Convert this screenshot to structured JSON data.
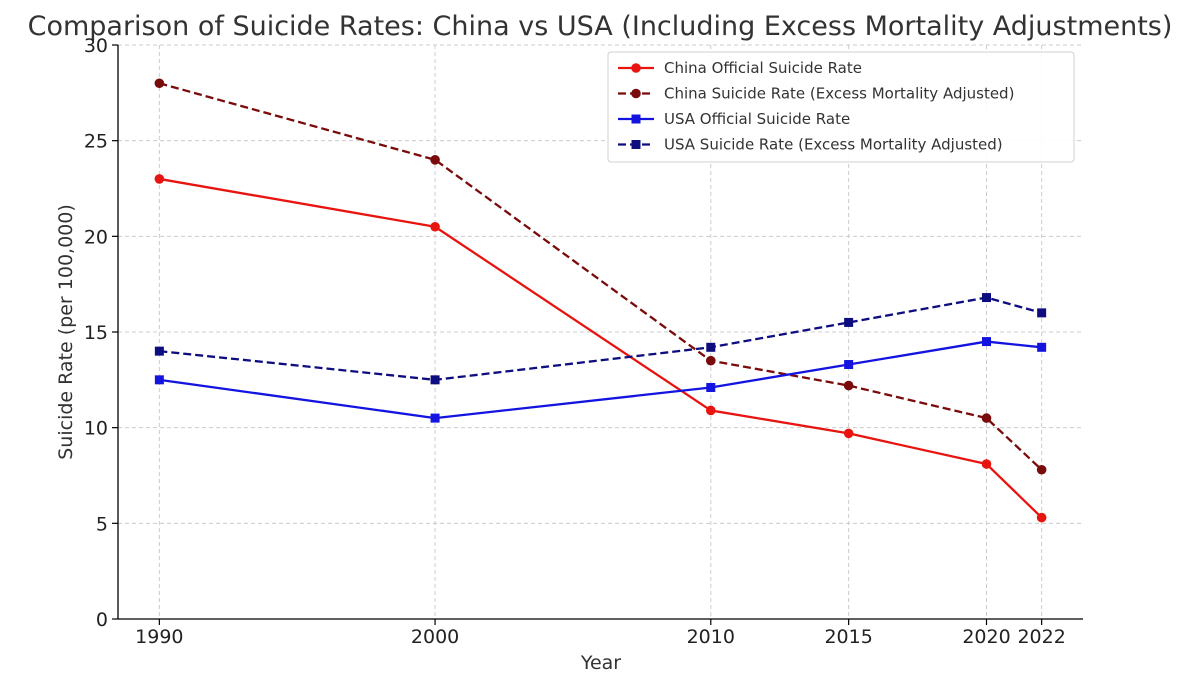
{
  "chart_data": {
    "type": "line",
    "title": "Comparison of Suicide Rates: China vs USA (Including Excess Mortality Adjustments)",
    "xlabel": "Year",
    "ylabel": "Suicide Rate (per 100,000)",
    "x": [
      1990,
      2000,
      2010,
      2015,
      2020,
      2022
    ],
    "x_tick_labels": [
      "1990",
      "2000",
      "2010",
      "2015",
      "2020",
      "2022"
    ],
    "xlim": [
      1988.5,
      2023.5
    ],
    "ylim": [
      0,
      30
    ],
    "y_ticks": [
      0,
      5,
      10,
      15,
      20,
      25,
      30
    ],
    "grid": true,
    "legend_position": "top-right",
    "series": [
      {
        "name": "China Official Suicide Rate",
        "values": [
          23,
          20.5,
          10.9,
          9.7,
          8.1,
          5.3
        ],
        "color": "#e8140f",
        "dash": "solid",
        "marker": "circle"
      },
      {
        "name": "China Suicide Rate (Excess Mortality Adjusted)",
        "values": [
          28,
          24,
          13.5,
          12.2,
          10.5,
          7.8
        ],
        "color": "#7a0b0b",
        "dash": "dashed",
        "marker": "circle"
      },
      {
        "name": "USA Official Suicide Rate",
        "values": [
          12.5,
          10.5,
          12.1,
          13.3,
          14.5,
          14.2
        ],
        "color": "#1414e0",
        "dash": "solid",
        "marker": "square"
      },
      {
        "name": "USA Suicide Rate (Excess Mortality Adjusted)",
        "values": [
          14,
          12.5,
          14.2,
          15.5,
          16.8,
          16
        ],
        "color": "#0d0d80",
        "dash": "dashed",
        "marker": "square"
      }
    ]
  }
}
